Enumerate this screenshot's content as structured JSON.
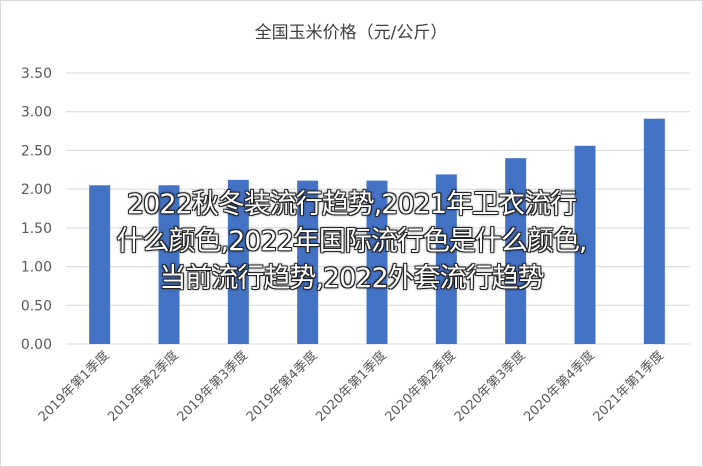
{
  "chart_data": {
    "type": "bar",
    "title": "全国玉米价格（元/公斤）",
    "categories": [
      "2019年第1季度",
      "2019年第2季度",
      "2019年第3季度",
      "2019年第4季度",
      "2020年第1季度",
      "2020年第2季度",
      "2020年第3季度",
      "2020年第4季度",
      "2021年第1季度"
    ],
    "values": [
      2.05,
      2.05,
      2.12,
      2.11,
      2.11,
      2.19,
      2.4,
      2.56,
      2.91
    ],
    "ylim": [
      0,
      3.5
    ],
    "yticks": [
      "0.00",
      "0.50",
      "1.00",
      "1.50",
      "2.00",
      "2.50",
      "3.00",
      "3.50"
    ],
    "grid": true,
    "bar_color": "#4472c4"
  },
  "overlay": {
    "lines": [
      "2022秋冬装流行趋势,2021年卫衣流行",
      "什么颜色,2022年国际流行色是什么颜色,",
      "当前流行趋势,2022外套流行趋势"
    ]
  }
}
